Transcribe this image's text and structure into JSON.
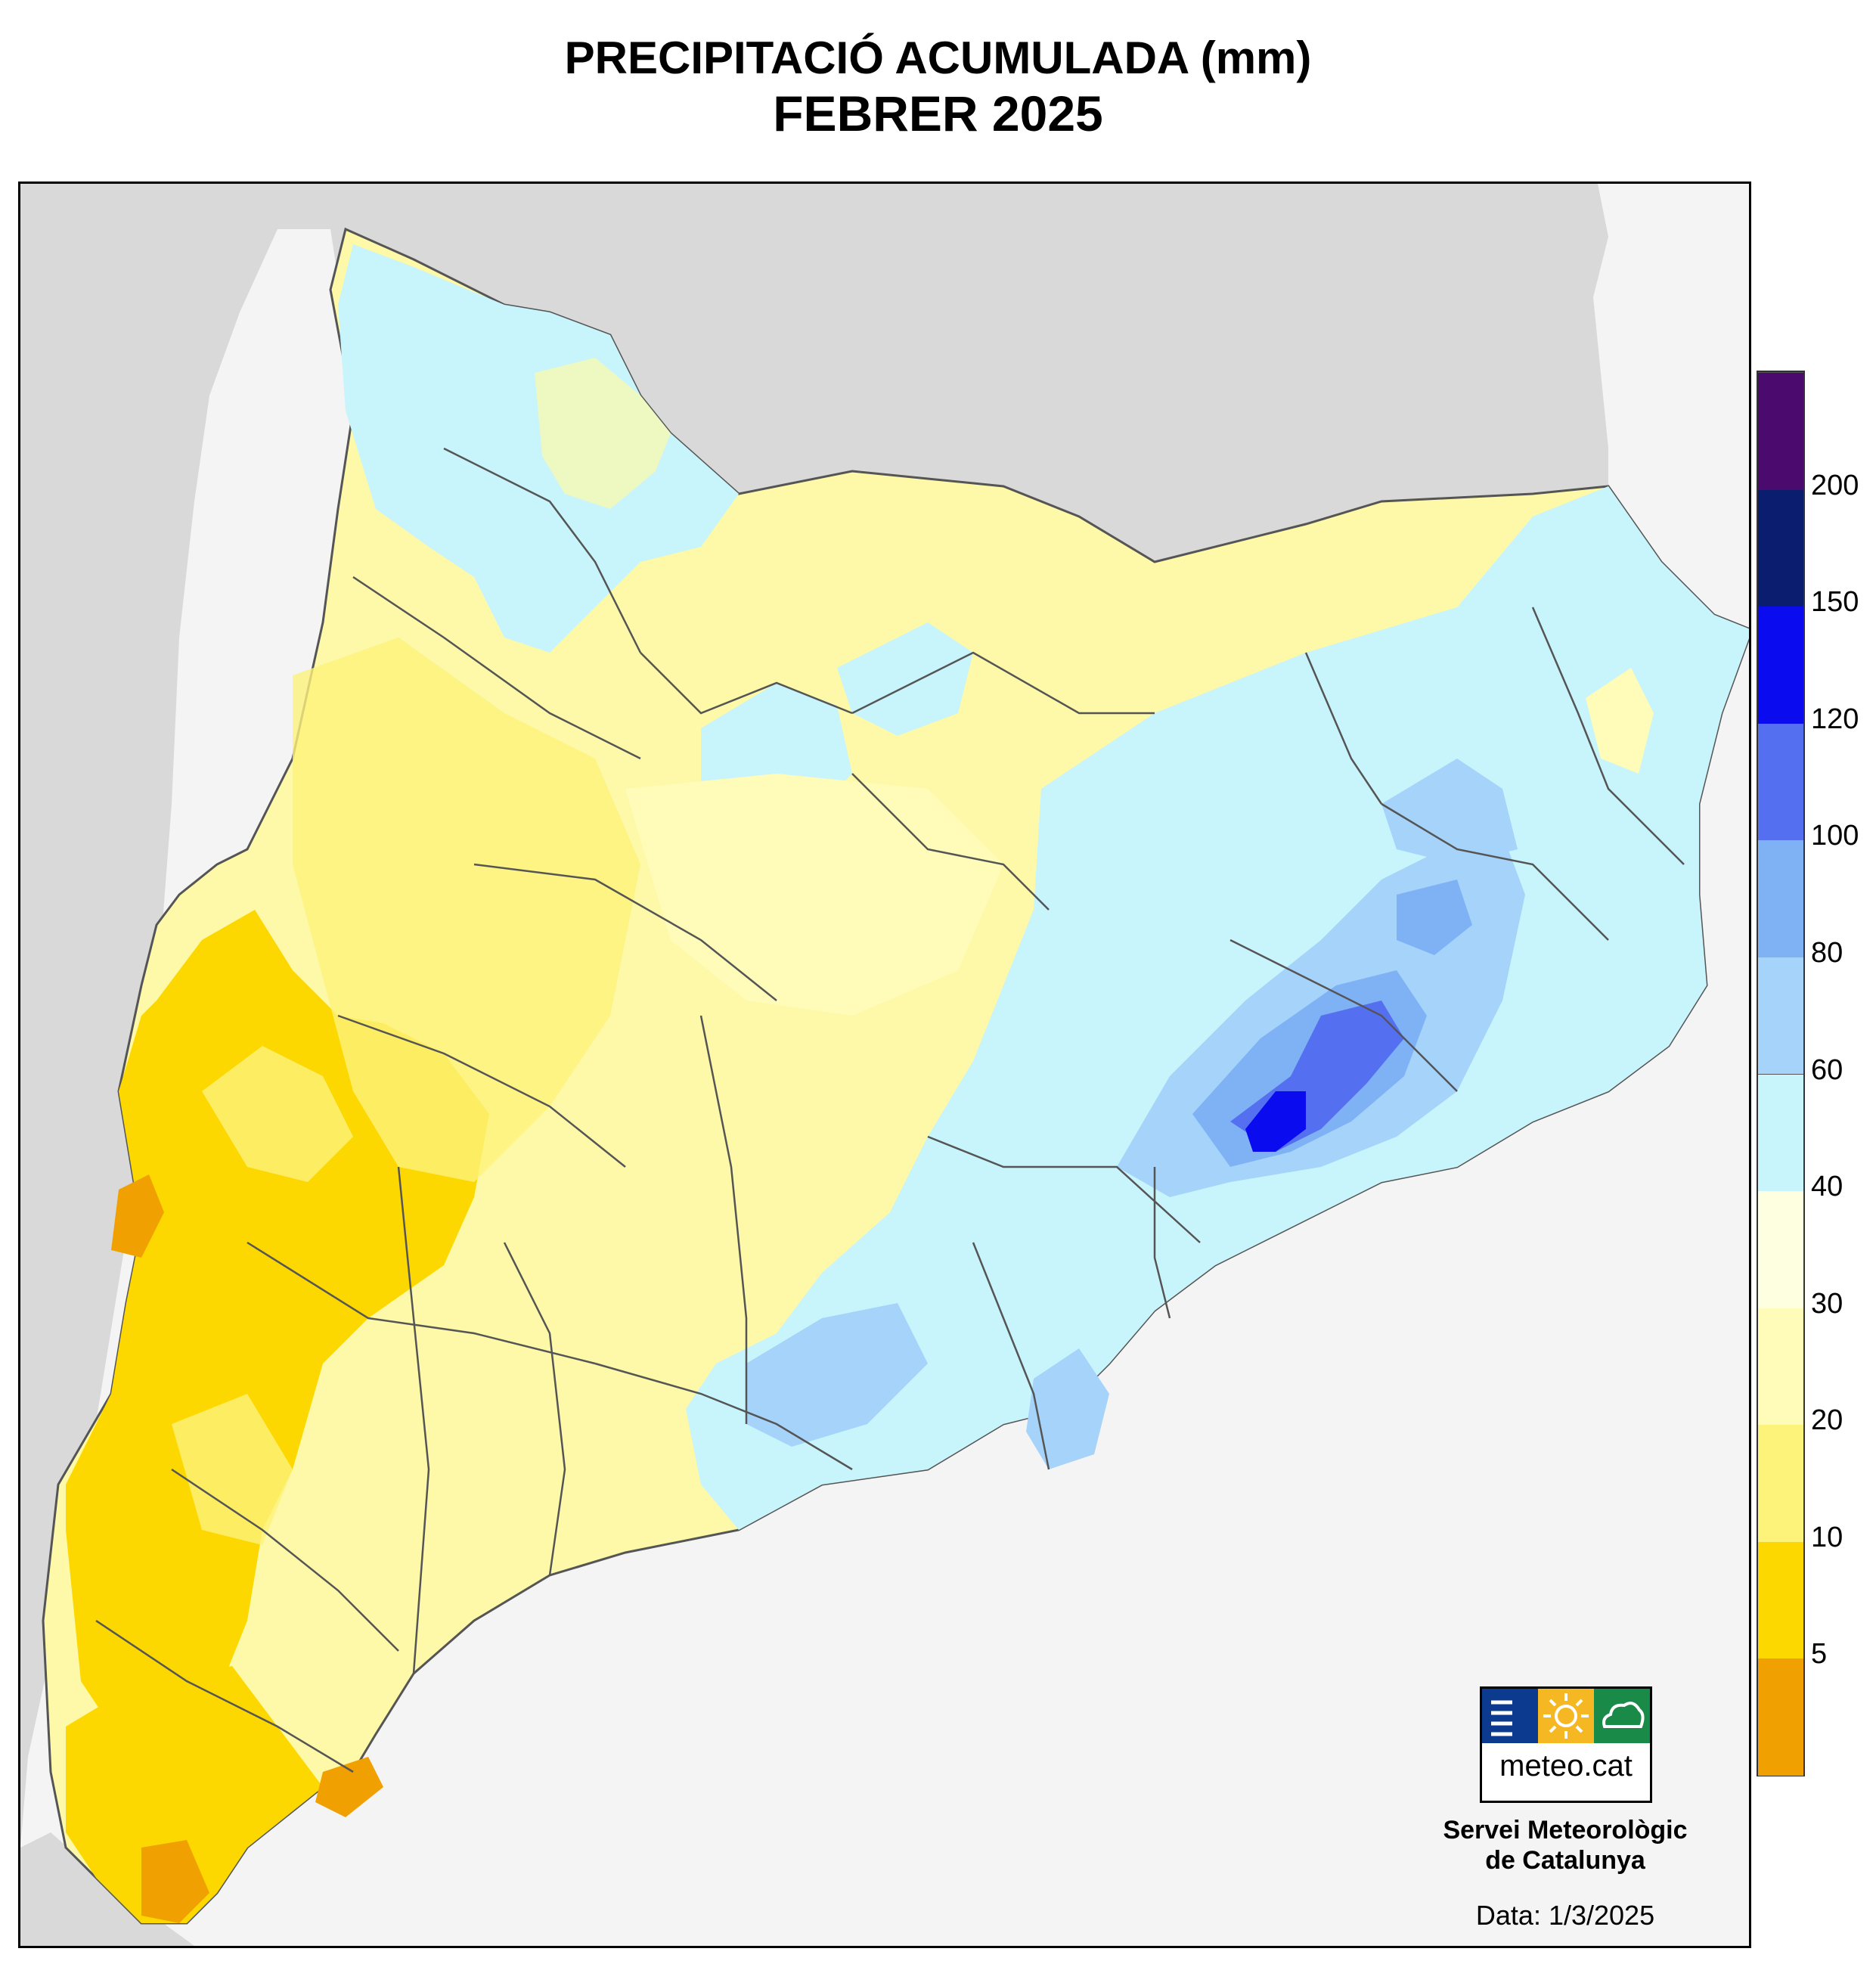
{
  "title": {
    "line1": "PRECIPITACIÓ ACUMULADA (mm)",
    "line2": "FEBRER 2025"
  },
  "legend": {
    "ticks": [
      "5",
      "10",
      "20",
      "30",
      "40",
      "60",
      "80",
      "100",
      "120",
      "150",
      "200"
    ],
    "colors": [
      "#f0a000",
      "#fdd800",
      "#fdf27a",
      "#fefcb8",
      "#fefee0",
      "#c8f4fc",
      "#a6d3fa",
      "#7fb2f5",
      "#5470f0",
      "#0b0bf0",
      "#0a1d6e",
      "#4a0a6e"
    ]
  },
  "logo": {
    "text": "meteo.cat",
    "colors": [
      "#0b3a8e",
      "#f6b822",
      "#1a8a48"
    ]
  },
  "credit": {
    "line1": "Servei Meteorològic",
    "line2": "de Catalunya"
  },
  "date": "Data: 1/3/2025"
}
